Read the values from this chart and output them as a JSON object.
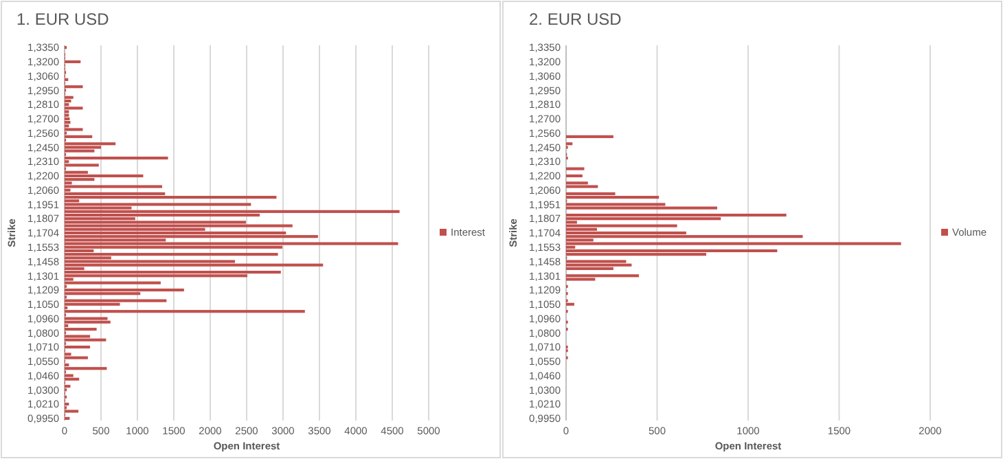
{
  "chart_data": [
    {
      "type": "bar",
      "orientation": "horizontal",
      "title": "1. EUR USD",
      "xlabel": "Open Interest",
      "ylabel": "Strike",
      "categories": [
        "1,3350",
        null,
        null,
        null,
        "1,3200",
        null,
        null,
        null,
        "1,3060",
        null,
        null,
        null,
        "1,2950",
        null,
        null,
        null,
        "1,2810",
        null,
        null,
        null,
        "1,2700",
        null,
        null,
        null,
        "1,2560",
        null,
        null,
        null,
        "1,2450",
        null,
        null,
        null,
        "1,2310",
        null,
        null,
        null,
        "1,2200",
        null,
        null,
        null,
        "1,2060",
        null,
        null,
        null,
        "1,1951",
        null,
        null,
        null,
        "1,1807",
        null,
        null,
        null,
        "1,1704",
        null,
        null,
        null,
        "1,1553",
        null,
        null,
        null,
        "1,1458",
        null,
        null,
        null,
        "1,1301",
        null,
        null,
        null,
        "1,1209",
        null,
        null,
        null,
        "1,1050",
        null,
        null,
        null,
        "1,0960",
        null,
        null,
        null,
        "1,0800",
        null,
        null,
        null,
        "1,0710",
        null,
        null,
        null,
        "1,0550",
        null,
        null,
        null,
        "1,0460",
        null,
        null,
        null,
        "1,0300",
        null,
        null,
        null,
        "1,0210",
        null,
        null,
        null,
        "0,9950"
      ],
      "series": [
        {
          "name": "Interest",
          "color": "#c0504d",
          "values": [
            30,
            0,
            10,
            10,
            220,
            10,
            10,
            20,
            10,
            50,
            10,
            250,
            20,
            10,
            120,
            90,
            60,
            250,
            60,
            60,
            70,
            80,
            60,
            250,
            30,
            380,
            20,
            700,
            500,
            410,
            20,
            1420,
            60,
            470,
            20,
            320,
            1080,
            410,
            100,
            1340,
            80,
            1380,
            2910,
            200,
            2560,
            920,
            4600,
            2680,
            970,
            2490,
            3130,
            1930,
            3040,
            3480,
            1390,
            4580,
            2990,
            400,
            2930,
            640,
            2340,
            3550,
            270,
            2970,
            2510,
            120,
            1320,
            30,
            1640,
            1040,
            30,
            1400,
            760,
            40,
            3300,
            20,
            590,
            630,
            50,
            440,
            20,
            350,
            570,
            20,
            350,
            10,
            90,
            320,
            10,
            60,
            580,
            20,
            120,
            200,
            10,
            80,
            30,
            10,
            30,
            10,
            60,
            30,
            190,
            10,
            70
          ]
        }
      ],
      "xlim": [
        0,
        5000
      ],
      "xticks": [
        0,
        500,
        1000,
        1500,
        2000,
        2500,
        3000,
        3500,
        4000,
        4500,
        5000
      ],
      "grid": "x",
      "legend": "right"
    },
    {
      "type": "bar",
      "orientation": "horizontal",
      "title": "2. EUR USD",
      "xlabel": "Open Interest",
      "ylabel": "Strike",
      "categories": [
        "1,3350",
        null,
        null,
        null,
        "1,3200",
        null,
        null,
        null,
        "1,3060",
        null,
        null,
        null,
        "1,2950",
        null,
        null,
        null,
        "1,2810",
        null,
        null,
        null,
        "1,2700",
        null,
        null,
        null,
        "1,2560",
        null,
        null,
        null,
        "1,2450",
        null,
        null,
        null,
        "1,2310",
        null,
        null,
        null,
        "1,2200",
        null,
        null,
        null,
        "1,2060",
        null,
        null,
        null,
        "1,1951",
        null,
        null,
        null,
        "1,1807",
        null,
        null,
        null,
        "1,1704",
        null,
        null,
        null,
        "1,1553",
        null,
        null,
        null,
        "1,1458",
        null,
        null,
        null,
        "1,1301",
        null,
        null,
        null,
        "1,1209",
        null,
        null,
        null,
        "1,1050",
        null,
        null,
        null,
        "1,0960",
        null,
        null,
        null,
        "1,0800",
        null,
        null,
        null,
        "1,0710",
        null,
        null,
        null,
        "1,0550",
        null,
        null,
        null,
        "1,0460",
        null,
        null,
        null,
        "1,0300",
        null,
        null,
        null,
        "1,0210",
        null,
        null,
        null,
        "0,9950"
      ],
      "series": [
        {
          "name": "Volume",
          "color": "#c0504d",
          "values": [
            0,
            0,
            0,
            0,
            0,
            0,
            0,
            0,
            0,
            0,
            0,
            0,
            0,
            0,
            0,
            0,
            0,
            0,
            0,
            0,
            0,
            0,
            0,
            0,
            0,
            260,
            0,
            35,
            10,
            0,
            5,
            10,
            0,
            0,
            100,
            0,
            90,
            0,
            120,
            175,
            0,
            270,
            510,
            5,
            545,
            830,
            0,
            1210,
            850,
            60,
            610,
            170,
            660,
            1300,
            150,
            1840,
            50,
            1160,
            770,
            5,
            330,
            360,
            260,
            0,
            400,
            160,
            0,
            10,
            0,
            10,
            0,
            10,
            45,
            0,
            10,
            0,
            0,
            10,
            0,
            10,
            0,
            0,
            0,
            0,
            10,
            10,
            0,
            10,
            0,
            0,
            0,
            0,
            0,
            0,
            0,
            0,
            0,
            0,
            0,
            0,
            0,
            0,
            0,
            0,
            0
          ]
        }
      ],
      "xlim": [
        0,
        2000
      ],
      "xticks": [
        0,
        500,
        1000,
        1500,
        2000
      ],
      "grid": "x",
      "legend": "right"
    }
  ]
}
